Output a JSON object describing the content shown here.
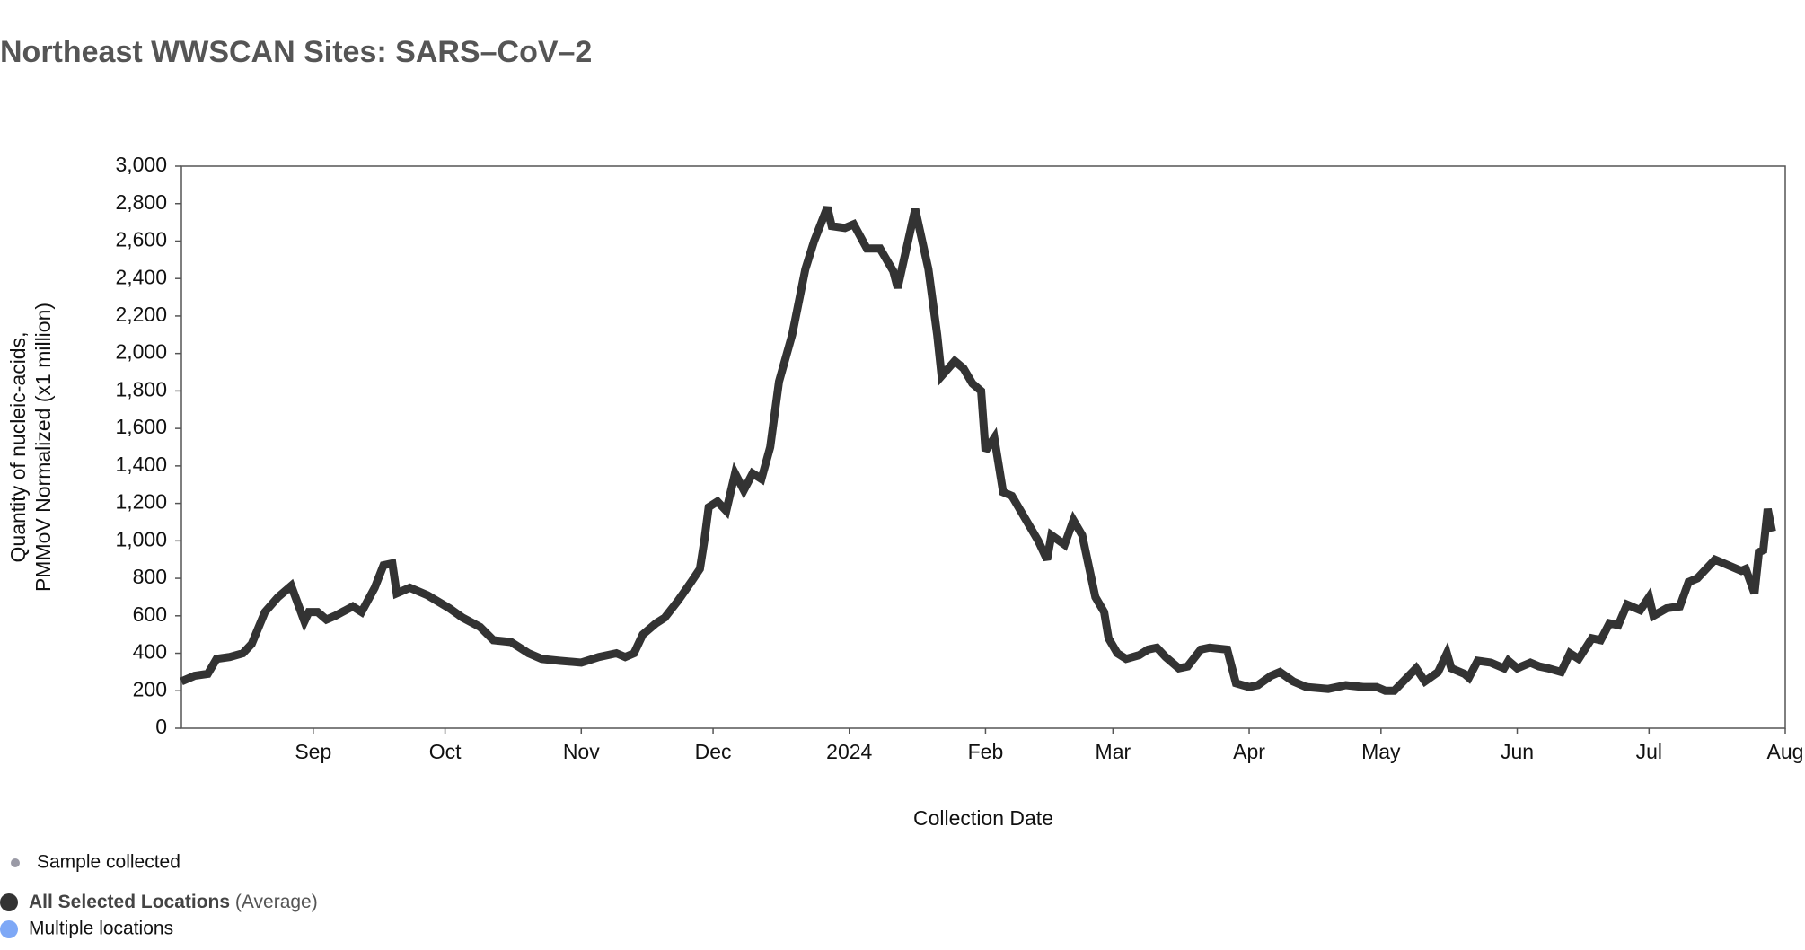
{
  "chart_data": {
    "type": "line",
    "title": "Northeast WWSCAN Sites: SARS–CoV–2",
    "x_label": "Collection Date",
    "y_label": [
      "Quantity of nucleic-acids,",
      "PMMoV Normalized (x1 million)"
    ],
    "xlim": [
      "2023-08-02",
      "2024-08-01"
    ],
    "xticks": [
      {
        "value": "2023-09-01",
        "label": "Sep"
      },
      {
        "value": "2023-10-01",
        "label": "Oct"
      },
      {
        "value": "2023-11-01",
        "label": "Nov"
      },
      {
        "value": "2023-12-01",
        "label": "Dec"
      },
      {
        "value": "2024-01-01",
        "label": "2024"
      },
      {
        "value": "2024-02-01",
        "label": "Feb"
      },
      {
        "value": "2024-03-01",
        "label": "Mar"
      },
      {
        "value": "2024-04-01",
        "label": "Apr"
      },
      {
        "value": "2024-05-01",
        "label": "May"
      },
      {
        "value": "2024-06-01",
        "label": "Jun"
      },
      {
        "value": "2024-07-01",
        "label": "Jul"
      },
      {
        "value": "2024-08-01",
        "label": "Aug"
      }
    ],
    "ylim": [
      0,
      3000
    ],
    "yticks": [
      0,
      200,
      400,
      600,
      800,
      {
        "value": 1000,
        "label": "1,000"
      },
      {
        "value": 1200,
        "label": "1,200"
      },
      {
        "value": 1400,
        "label": "1,400"
      },
      {
        "value": 1600,
        "label": "1,600"
      },
      {
        "value": 1800,
        "label": "1,800"
      },
      {
        "value": 2000,
        "label": "2,000"
      },
      {
        "value": 2200,
        "label": "2,200"
      },
      {
        "value": 2400,
        "label": "2,400"
      },
      {
        "value": 2600,
        "label": "2,600"
      },
      {
        "value": 2800,
        "label": "2,800"
      },
      {
        "value": 3000,
        "label": "3,000"
      }
    ],
    "x": [
      "2023-08-02",
      "2023-08-05",
      "2023-08-08",
      "2023-08-10",
      "2023-08-13",
      "2023-08-16",
      "2023-08-18",
      "2023-08-21",
      "2023-08-24",
      "2023-08-27",
      "2023-08-30",
      "2023-08-31",
      "2023-09-02",
      "2023-09-04",
      "2023-09-06",
      "2023-09-10",
      "2023-09-12",
      "2023-09-15",
      "2023-09-17",
      "2023-09-19",
      "2023-09-20",
      "2023-09-23",
      "2023-09-27",
      "2023-10-02",
      "2023-10-05",
      "2023-10-09",
      "2023-10-12",
      "2023-10-16",
      "2023-10-20",
      "2023-10-23",
      "2023-10-27",
      "2023-11-01",
      "2023-11-05",
      "2023-11-09",
      "2023-11-11",
      "2023-11-13",
      "2023-11-15",
      "2023-11-18",
      "2023-11-20",
      "2023-11-23",
      "2023-11-26",
      "2023-11-28",
      "2023-11-29",
      "2023-11-30",
      "2023-12-02",
      "2023-12-04",
      "2023-12-06",
      "2023-12-08",
      "2023-12-10",
      "2023-12-12",
      "2023-12-14",
      "2023-12-16",
      "2023-12-19",
      "2023-12-22",
      "2023-12-24",
      "2023-12-27",
      "2023-12-28",
      "2023-12-31",
      "2024-01-02",
      "2024-01-05",
      "2024-01-08",
      "2024-01-11",
      "2024-01-12",
      "2024-01-16",
      "2024-01-19",
      "2024-01-21",
      "2024-01-22",
      "2024-01-25",
      "2024-01-27",
      "2024-01-29",
      "2024-01-31",
      "2024-02-01",
      "2024-02-03",
      "2024-02-05",
      "2024-02-07",
      "2024-02-10",
      "2024-02-13",
      "2024-02-15",
      "2024-02-16",
      "2024-02-19",
      "2024-02-21",
      "2024-02-23",
      "2024-02-26",
      "2024-02-28",
      "2024-02-29",
      "2024-03-02",
      "2024-03-04",
      "2024-03-07",
      "2024-03-09",
      "2024-03-11",
      "2024-03-13",
      "2024-03-16",
      "2024-03-18",
      "2024-03-21",
      "2024-03-23",
      "2024-03-27",
      "2024-03-29",
      "2024-04-01",
      "2024-04-03",
      "2024-04-06",
      "2024-04-08",
      "2024-04-11",
      "2024-04-14",
      "2024-04-19",
      "2024-04-23",
      "2024-04-27",
      "2024-04-30",
      "2024-05-02",
      "2024-05-04",
      "2024-05-09",
      "2024-05-11",
      "2024-05-14",
      "2024-05-16",
      "2024-05-17",
      "2024-05-20",
      "2024-05-21",
      "2024-05-23",
      "2024-05-26",
      "2024-05-29",
      "2024-05-30",
      "2024-06-01",
      "2024-06-04",
      "2024-06-06",
      "2024-06-08",
      "2024-06-11",
      "2024-06-13",
      "2024-06-15",
      "2024-06-18",
      "2024-06-20",
      "2024-06-22",
      "2024-06-24",
      "2024-06-26",
      "2024-06-29",
      "2024-07-01",
      "2024-07-02",
      "2024-07-05",
      "2024-07-08",
      "2024-07-10",
      "2024-07-12",
      "2024-07-16",
      "2024-07-18",
      "2024-07-22",
      "2024-07-23",
      "2024-07-25",
      "2024-07-26",
      "2024-07-27",
      "2024-07-28",
      "2024-07-29"
    ],
    "series": [
      {
        "name": "All Selected Locations",
        "legend_suffix": "(Average)",
        "color": "#333333",
        "values": [
          250,
          280,
          290,
          370,
          380,
          400,
          450,
          620,
          700,
          760,
          570,
          620,
          620,
          580,
          600,
          650,
          620,
          750,
          870,
          880,
          720,
          750,
          710,
          640,
          590,
          540,
          470,
          460,
          400,
          370,
          360,
          350,
          380,
          400,
          380,
          400,
          500,
          560,
          590,
          680,
          780,
          850,
          1000,
          1180,
          1210,
          1160,
          1360,
          1270,
          1360,
          1330,
          1500,
          1850,
          2100,
          2450,
          2600,
          2780,
          2680,
          2670,
          2690,
          2560,
          2560,
          2440,
          2350,
          2770,
          2450,
          2100,
          1880,
          1960,
          1920,
          1840,
          1800,
          1480,
          1550,
          1260,
          1240,
          1120,
          1000,
          900,
          1030,
          980,
          1110,
          1030,
          700,
          620,
          480,
          400,
          370,
          390,
          420,
          430,
          380,
          320,
          330,
          420,
          430,
          420,
          240,
          220,
          230,
          280,
          300,
          250,
          220,
          210,
          230,
          220,
          220,
          200,
          200,
          320,
          250,
          300,
          400,
          320,
          290,
          270,
          360,
          350,
          320,
          360,
          320,
          350,
          330,
          320,
          300,
          400,
          370,
          480,
          470,
          560,
          550,
          660,
          630,
          700,
          600,
          640,
          650,
          780,
          800,
          900,
          880,
          840,
          850,
          720,
          940,
          950,
          1170,
          1050
        ]
      }
    ],
    "legend_extra": [
      {
        "text": "Sample collected",
        "color": "#9a9aa6"
      },
      {
        "text": "Multiple locations",
        "color": "#7ea8f6"
      }
    ],
    "grid": false
  }
}
